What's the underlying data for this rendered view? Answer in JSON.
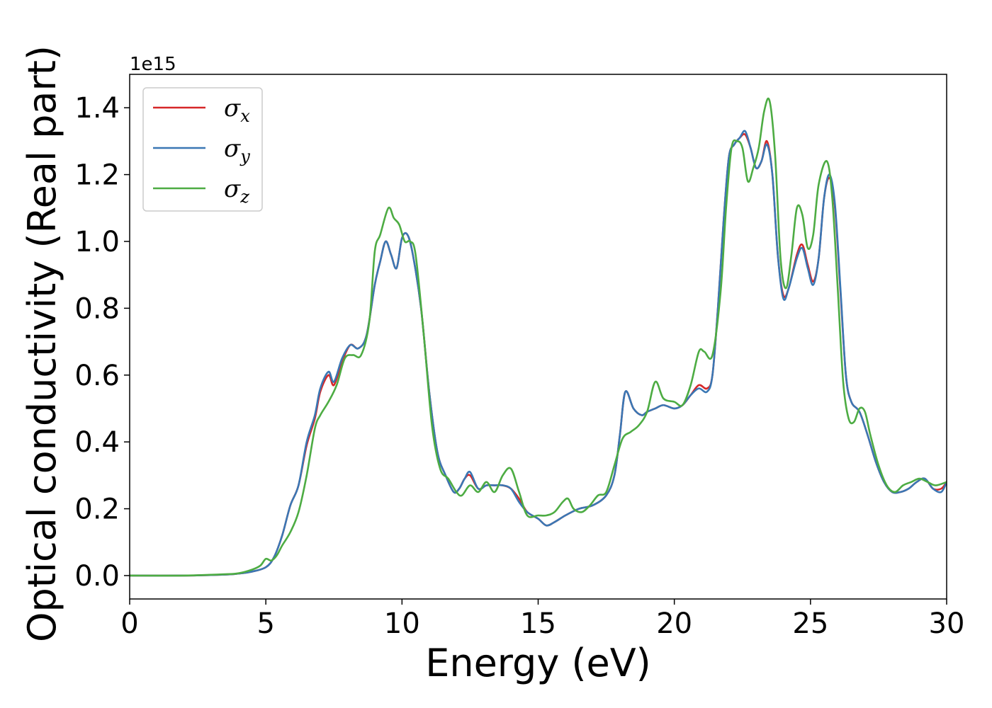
{
  "chart_data": {
    "type": "line",
    "title": "",
    "xlabel": "Energy (eV)",
    "ylabel": "Optical conductivity (Real part)",
    "y_offset_label": "1e15",
    "xlim": [
      0,
      30
    ],
    "ylim": [
      -0.07,
      1.5
    ],
    "x_ticks": [
      0,
      5,
      10,
      15,
      20,
      25,
      30
    ],
    "y_ticks": [
      0.0,
      0.2,
      0.4,
      0.6,
      0.8,
      1.0,
      1.2,
      1.4
    ],
    "x_tick_labels": [
      "0",
      "5",
      "10",
      "15",
      "20",
      "25",
      "30"
    ],
    "y_tick_labels": [
      "0.0",
      "0.2",
      "0.4",
      "0.6",
      "0.8",
      "1.0",
      "1.2",
      "1.4"
    ],
    "grid": false,
    "legend_position": "top-left",
    "series": [
      {
        "name": "σx",
        "legend_base": "σ",
        "legend_sub": "x",
        "color": "#d62728",
        "x": [
          0,
          2,
          3.5,
          4,
          4.5,
          5,
          5.3,
          5.6,
          5.9,
          6.2,
          6.5,
          6.8,
          7.0,
          7.3,
          7.5,
          7.8,
          8.1,
          8.4,
          8.7,
          9.0,
          9.2,
          9.4,
          9.6,
          9.8,
          10.0,
          10.2,
          10.4,
          10.7,
          11.0,
          11.3,
          11.6,
          11.9,
          12.1,
          12.3,
          12.5,
          12.8,
          13.1,
          13.4,
          13.7,
          14.0,
          14.3,
          14.6,
          15.0,
          15.3,
          15.6,
          16.0,
          16.5,
          17.0,
          17.5,
          17.8,
          18.0,
          18.2,
          18.5,
          18.8,
          19.0,
          19.3,
          19.6,
          20.0,
          20.3,
          20.6,
          20.9,
          21.2,
          21.4,
          21.6,
          21.8,
          22.0,
          22.2,
          22.4,
          22.6,
          22.8,
          23.0,
          23.2,
          23.4,
          23.6,
          23.8,
          24.0,
          24.2,
          24.5,
          24.7,
          24.9,
          25.1,
          25.3,
          25.5,
          25.7,
          25.9,
          26.1,
          26.3,
          26.5,
          26.8,
          27.1,
          27.4,
          27.7,
          28.0,
          28.3,
          28.6,
          28.9,
          29.2,
          29.5,
          29.8,
          30.0
        ],
        "values": [
          0.0,
          0.0,
          0.003,
          0.006,
          0.012,
          0.025,
          0.055,
          0.12,
          0.21,
          0.27,
          0.39,
          0.47,
          0.55,
          0.6,
          0.57,
          0.64,
          0.69,
          0.68,
          0.72,
          0.87,
          0.94,
          1.0,
          0.96,
          0.92,
          1.01,
          1.02,
          0.96,
          0.8,
          0.55,
          0.37,
          0.3,
          0.25,
          0.26,
          0.29,
          0.3,
          0.26,
          0.27,
          0.27,
          0.27,
          0.26,
          0.23,
          0.19,
          0.17,
          0.15,
          0.16,
          0.18,
          0.2,
          0.21,
          0.24,
          0.3,
          0.42,
          0.55,
          0.5,
          0.48,
          0.49,
          0.5,
          0.51,
          0.5,
          0.51,
          0.54,
          0.57,
          0.56,
          0.6,
          0.8,
          1.05,
          1.25,
          1.29,
          1.31,
          1.32,
          1.28,
          1.22,
          1.24,
          1.3,
          1.2,
          0.96,
          0.84,
          0.86,
          0.96,
          0.99,
          0.93,
          0.88,
          0.95,
          1.13,
          1.19,
          1.1,
          0.85,
          0.6,
          0.52,
          0.49,
          0.42,
          0.34,
          0.28,
          0.25,
          0.25,
          0.26,
          0.28,
          0.29,
          0.26,
          0.26,
          0.28
        ]
      },
      {
        "name": "σy",
        "legend_base": "σ",
        "legend_sub": "y",
        "color": "#3a77b4",
        "x": [
          0,
          2,
          3.5,
          4,
          4.5,
          5,
          5.3,
          5.6,
          5.9,
          6.2,
          6.5,
          6.8,
          7.0,
          7.3,
          7.5,
          7.8,
          8.1,
          8.4,
          8.7,
          9.0,
          9.2,
          9.4,
          9.6,
          9.8,
          10.0,
          10.2,
          10.4,
          10.7,
          11.0,
          11.3,
          11.6,
          11.9,
          12.1,
          12.3,
          12.5,
          12.8,
          13.1,
          13.4,
          13.7,
          14.0,
          14.3,
          14.6,
          15.0,
          15.3,
          15.6,
          16.0,
          16.5,
          17.0,
          17.5,
          17.8,
          18.0,
          18.2,
          18.5,
          18.8,
          19.0,
          19.3,
          19.6,
          20.0,
          20.3,
          20.6,
          20.9,
          21.2,
          21.4,
          21.6,
          21.8,
          22.0,
          22.2,
          22.4,
          22.6,
          22.8,
          23.0,
          23.2,
          23.4,
          23.6,
          23.8,
          24.0,
          24.2,
          24.5,
          24.7,
          24.9,
          25.1,
          25.3,
          25.5,
          25.7,
          25.9,
          26.1,
          26.3,
          26.5,
          26.8,
          27.1,
          27.4,
          27.7,
          28.0,
          28.3,
          28.6,
          28.9,
          29.2,
          29.5,
          29.8,
          30.0
        ],
        "values": [
          0.0,
          0.0,
          0.003,
          0.006,
          0.012,
          0.025,
          0.055,
          0.12,
          0.21,
          0.27,
          0.4,
          0.48,
          0.56,
          0.61,
          0.58,
          0.65,
          0.69,
          0.68,
          0.72,
          0.87,
          0.94,
          1.0,
          0.96,
          0.92,
          1.01,
          1.02,
          0.96,
          0.8,
          0.55,
          0.37,
          0.3,
          0.25,
          0.26,
          0.29,
          0.31,
          0.26,
          0.27,
          0.27,
          0.27,
          0.26,
          0.22,
          0.19,
          0.17,
          0.15,
          0.16,
          0.18,
          0.2,
          0.21,
          0.24,
          0.3,
          0.42,
          0.55,
          0.5,
          0.48,
          0.49,
          0.5,
          0.51,
          0.5,
          0.51,
          0.54,
          0.56,
          0.55,
          0.6,
          0.8,
          1.05,
          1.25,
          1.29,
          1.31,
          1.33,
          1.28,
          1.22,
          1.24,
          1.29,
          1.2,
          0.96,
          0.83,
          0.86,
          0.95,
          0.98,
          0.92,
          0.87,
          0.95,
          1.13,
          1.2,
          1.11,
          0.86,
          0.6,
          0.52,
          0.49,
          0.42,
          0.34,
          0.28,
          0.25,
          0.25,
          0.26,
          0.28,
          0.29,
          0.26,
          0.25,
          0.28
        ]
      },
      {
        "name": "σz",
        "legend_base": "σ",
        "legend_sub": "z",
        "color": "#4dac43",
        "x": [
          0,
          2,
          3.5,
          4,
          4.5,
          4.8,
          5.0,
          5.2,
          5.4,
          5.6,
          5.9,
          6.2,
          6.5,
          6.8,
          7.0,
          7.3,
          7.6,
          7.9,
          8.2,
          8.5,
          8.8,
          9.0,
          9.2,
          9.5,
          9.7,
          9.9,
          10.1,
          10.3,
          10.5,
          10.8,
          11.1,
          11.4,
          11.7,
          12.0,
          12.2,
          12.5,
          12.8,
          13.1,
          13.4,
          13.7,
          14.0,
          14.3,
          14.6,
          15.0,
          15.3,
          15.6,
          15.9,
          16.1,
          16.3,
          16.6,
          16.9,
          17.2,
          17.5,
          17.8,
          18.1,
          18.4,
          18.7,
          19.0,
          19.3,
          19.6,
          20.0,
          20.3,
          20.6,
          20.9,
          21.1,
          21.4,
          21.7,
          21.9,
          22.1,
          22.3,
          22.5,
          22.7,
          22.9,
          23.1,
          23.3,
          23.5,
          23.7,
          23.9,
          24.1,
          24.3,
          24.5,
          24.7,
          24.9,
          25.1,
          25.3,
          25.6,
          25.8,
          26.0,
          26.2,
          26.4,
          26.6,
          26.8,
          27.0,
          27.2,
          27.5,
          27.8,
          28.1,
          28.4,
          28.7,
          29.0,
          29.3,
          29.6,
          30.0
        ],
        "values": [
          0.0,
          0.0,
          0.004,
          0.007,
          0.018,
          0.03,
          0.05,
          0.045,
          0.06,
          0.09,
          0.13,
          0.19,
          0.3,
          0.44,
          0.48,
          0.52,
          0.57,
          0.65,
          0.66,
          0.66,
          0.76,
          0.97,
          1.02,
          1.1,
          1.07,
          1.05,
          1.0,
          1.0,
          0.96,
          0.72,
          0.45,
          0.32,
          0.29,
          0.25,
          0.24,
          0.27,
          0.25,
          0.28,
          0.25,
          0.3,
          0.32,
          0.25,
          0.18,
          0.18,
          0.18,
          0.19,
          0.22,
          0.23,
          0.2,
          0.19,
          0.21,
          0.24,
          0.25,
          0.33,
          0.41,
          0.43,
          0.45,
          0.49,
          0.58,
          0.53,
          0.52,
          0.51,
          0.57,
          0.67,
          0.67,
          0.66,
          0.85,
          1.1,
          1.28,
          1.3,
          1.28,
          1.18,
          1.22,
          1.28,
          1.39,
          1.42,
          1.26,
          0.95,
          0.86,
          0.96,
          1.1,
          1.08,
          0.98,
          1.02,
          1.17,
          1.24,
          1.13,
          0.86,
          0.58,
          0.47,
          0.46,
          0.5,
          0.49,
          0.42,
          0.33,
          0.27,
          0.25,
          0.27,
          0.28,
          0.29,
          0.28,
          0.27,
          0.28
        ]
      }
    ]
  }
}
